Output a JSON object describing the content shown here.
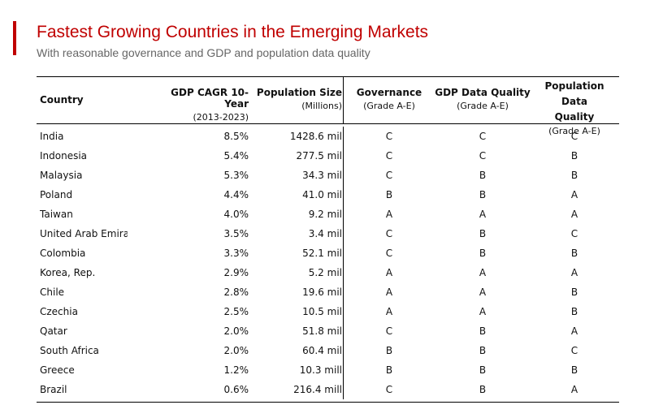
{
  "title": "Fastest Growing Countries in the Emerging Markets",
  "subtitle": "With reasonable governance and GDP and population data quality",
  "chart_data": {
    "type": "table",
    "columns": [
      {
        "name": "Country",
        "sub": ""
      },
      {
        "name": "GDP CAGR 10-Year",
        "sub": "(2013-2023)"
      },
      {
        "name": "Population Size",
        "sub": "(Millions)"
      },
      {
        "name": "Governance",
        "sub": "(Grade A-E)"
      },
      {
        "name": "GDP Data Quality",
        "sub": "(Grade A-E)"
      },
      {
        "name_line1": "Population Data",
        "name_line2": "Quality",
        "sub": "(Grade A-E)"
      }
    ],
    "rows": [
      {
        "country": "India",
        "gdp_cagr": "8.5%",
        "population": "1428.6 mil",
        "governance": "C",
        "gdp_quality": "C",
        "pop_quality": "C"
      },
      {
        "country": "Indonesia",
        "gdp_cagr": "5.4%",
        "population": "277.5 mil",
        "governance": "C",
        "gdp_quality": "C",
        "pop_quality": "B"
      },
      {
        "country": "Malaysia",
        "gdp_cagr": "5.3%",
        "population": "34.3 mil",
        "governance": "C",
        "gdp_quality": "B",
        "pop_quality": "B"
      },
      {
        "country": "Poland",
        "gdp_cagr": "4.4%",
        "population": "41.0 mil",
        "governance": "B",
        "gdp_quality": "B",
        "pop_quality": "A"
      },
      {
        "country": "Taiwan",
        "gdp_cagr": "4.0%",
        "population": "9.2 mil",
        "governance": "A",
        "gdp_quality": "A",
        "pop_quality": "A"
      },
      {
        "country": "United Arab Emirat",
        "gdp_cagr": "3.5%",
        "population": "3.4 mil",
        "governance": "C",
        "gdp_quality": "B",
        "pop_quality": "C"
      },
      {
        "country": "Colombia",
        "gdp_cagr": "3.3%",
        "population": "52.1 mil",
        "governance": "C",
        "gdp_quality": "B",
        "pop_quality": "B"
      },
      {
        "country": "Korea, Rep.",
        "gdp_cagr": "2.9%",
        "population": "5.2 mil",
        "governance": "A",
        "gdp_quality": "A",
        "pop_quality": "A"
      },
      {
        "country": "Chile",
        "gdp_cagr": "2.8%",
        "population": "19.6 mil",
        "governance": "A",
        "gdp_quality": "A",
        "pop_quality": "B"
      },
      {
        "country": "Czechia",
        "gdp_cagr": "2.5%",
        "population": "10.5 mil",
        "governance": "A",
        "gdp_quality": "A",
        "pop_quality": "B"
      },
      {
        "country": "Qatar",
        "gdp_cagr": "2.0%",
        "population": "51.8 mil",
        "governance": "C",
        "gdp_quality": "B",
        "pop_quality": "A"
      },
      {
        "country": "South Africa",
        "gdp_cagr": "2.0%",
        "population": "60.4 mil",
        "governance": "B",
        "gdp_quality": "B",
        "pop_quality": "C"
      },
      {
        "country": "Greece",
        "gdp_cagr": "1.2%",
        "population": "10.3 mill",
        "governance": "B",
        "gdp_quality": "B",
        "pop_quality": "B"
      },
      {
        "country": "Brazil",
        "gdp_cagr": "0.6%",
        "population": "216.4 mill",
        "governance": "C",
        "gdp_quality": "B",
        "pop_quality": "A"
      }
    ]
  },
  "colors": {
    "accent": "#c00000",
    "subtitle": "#666666"
  }
}
